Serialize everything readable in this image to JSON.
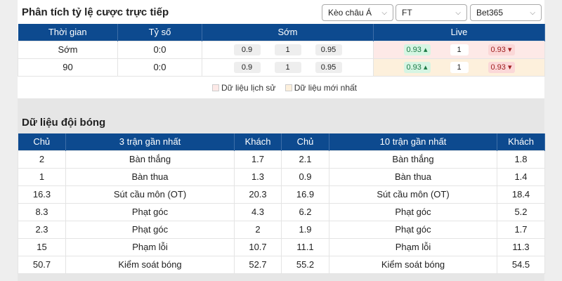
{
  "odds": {
    "title": "Phân tích tỷ lệ cược trực tiếp",
    "selects": [
      "Kèo châu Á",
      "FT",
      "Bet365"
    ],
    "headers": [
      "Thời gian",
      "Tỷ số",
      "Sớm",
      "Live"
    ],
    "rows": [
      {
        "time": "Sớm",
        "score": "0:0",
        "early": [
          "0.9",
          "1",
          "0.95"
        ],
        "live": [
          "0.93",
          "1",
          "0.93"
        ]
      },
      {
        "time": "90",
        "score": "0:0",
        "early": [
          "0.9",
          "1",
          "0.95"
        ],
        "live": [
          "0.93",
          "1",
          "0.93"
        ]
      }
    ],
    "legend": [
      "Dữ liệu lịch sử",
      "Dữ liệu mới nhất"
    ],
    "colors": {
      "header": "#0d4a8f",
      "up": "#1c7a45",
      "down": "#a02020",
      "history": "#fde9e7",
      "latest": "#fdf0dc"
    }
  },
  "team": {
    "title": "Dữ liệu đội bóng",
    "headers": [
      "Chủ",
      "3 trận gần nhất",
      "Khách",
      "Chủ",
      "10 trận gần nhất",
      "Khách"
    ],
    "rows": [
      [
        "2",
        "Bàn thắng",
        "1.7",
        "2.1",
        "Bàn thắng",
        "1.8"
      ],
      [
        "1",
        "Bàn thua",
        "1.3",
        "0.9",
        "Bàn thua",
        "1.4"
      ],
      [
        "16.3",
        "Sút cầu môn (OT)",
        "20.3",
        "16.9",
        "Sút cầu môn (OT)",
        "18.4"
      ],
      [
        "8.3",
        "Phạt góc",
        "4.3",
        "6.2",
        "Phạt góc",
        "5.2"
      ],
      [
        "2.3",
        "Phạt góc",
        "2",
        "1.9",
        "Phạt góc",
        "1.7"
      ],
      [
        "15",
        "Phạm lỗi",
        "10.7",
        "11.1",
        "Phạm lỗi",
        "11.3"
      ],
      [
        "50.7",
        "Kiểm soát bóng",
        "52.7",
        "55.2",
        "Kiểm soát bóng",
        "54.5"
      ]
    ]
  }
}
